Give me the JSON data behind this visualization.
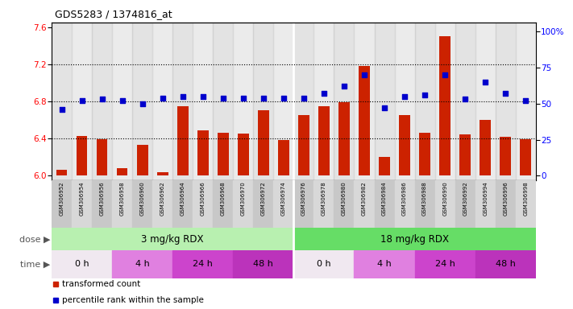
{
  "title": "GDS5283 / 1374816_at",
  "samples": [
    "GSM306952",
    "GSM306954",
    "GSM306956",
    "GSM306958",
    "GSM306960",
    "GSM306962",
    "GSM306964",
    "GSM306966",
    "GSM306968",
    "GSM306970",
    "GSM306972",
    "GSM306974",
    "GSM306976",
    "GSM306978",
    "GSM306980",
    "GSM306982",
    "GSM306984",
    "GSM306986",
    "GSM306988",
    "GSM306990",
    "GSM306992",
    "GSM306994",
    "GSM306996",
    "GSM306998"
  ],
  "red_values": [
    6.06,
    6.43,
    6.39,
    6.08,
    6.33,
    6.04,
    6.75,
    6.49,
    6.46,
    6.45,
    6.7,
    6.38,
    6.65,
    6.75,
    6.79,
    7.18,
    6.2,
    6.65,
    6.46,
    7.5,
    6.44,
    6.6,
    6.42,
    6.39
  ],
  "blue_values": [
    46,
    52,
    53,
    52,
    50,
    54,
    55,
    55,
    54,
    54,
    54,
    54,
    54,
    57,
    62,
    70,
    47,
    55,
    56,
    70,
    53,
    65,
    57,
    52
  ],
  "ylim_left": [
    5.95,
    7.65
  ],
  "ylim_right": [
    -3.125,
    106.25
  ],
  "yticks_left": [
    6.0,
    6.4,
    6.8,
    7.2,
    7.6
  ],
  "yticks_right": [
    0,
    25,
    50,
    75,
    100
  ],
  "grid_values": [
    6.4,
    6.8,
    7.2
  ],
  "bar_color": "#cc2200",
  "dot_color": "#0000cc",
  "col_colors": [
    "#c8c8c8",
    "#d8d8d8"
  ],
  "dose_colors": [
    "#b8f0b0",
    "#66dd66"
  ],
  "time_colors": [
    "#f0e8f0",
    "#e080e0",
    "#cc44cc",
    "#bb33bb"
  ],
  "separator_color": "#ffffff"
}
